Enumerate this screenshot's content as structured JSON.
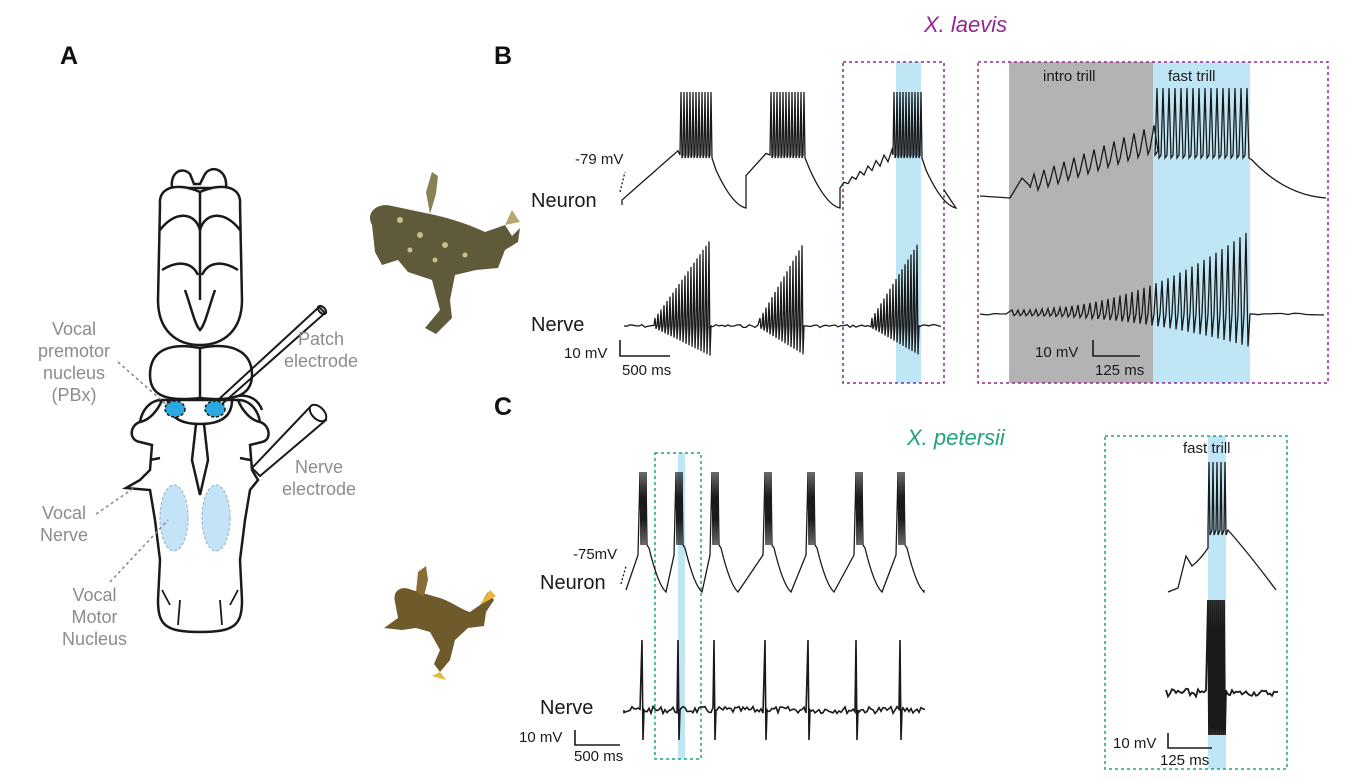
{
  "panels": {
    "a": "A",
    "b": "B",
    "c": "C"
  },
  "colors": {
    "laevis": "#93278f",
    "petersii": "#1fa37a",
    "highlight": "#bfe6f5",
    "intro": "#b3b3b3",
    "trace": "#1a1a1a",
    "label_grey": "#8c8c8c",
    "vmn": "#c3e3f7",
    "pbx": "#29a9e0"
  },
  "brain": {
    "pbx_label": [
      "Vocal",
      "premotor",
      "nucleus",
      "(PBx)"
    ],
    "patch_label": [
      "Patch",
      "electrode"
    ],
    "nerve_electrode_label": [
      "Nerve",
      "electrode"
    ],
    "vocal_nerve_label": [
      "Vocal",
      "Nerve"
    ],
    "vmn_label": [
      "Vocal",
      "Motor",
      "Nucleus"
    ]
  },
  "laevis": {
    "species": "X. laevis",
    "rmp": "-79 mV",
    "neuron_label": "Neuron",
    "nerve_label": "Nerve",
    "scale_v": "10 mV",
    "scale_t": "500 ms",
    "zoom_scale_v": "10 mV",
    "zoom_scale_t": "125 ms",
    "intro_label": "intro trill",
    "fast_label": "fast trill"
  },
  "petersii": {
    "species": "X. petersii",
    "rmp": "-75mV",
    "neuron_label": "Neuron",
    "nerve_label": "Nerve",
    "scale_v": "10 mV",
    "scale_t": "500 ms",
    "zoom_scale_v": "10 mV",
    "zoom_scale_t": "125 ms",
    "fast_label": "fast trill"
  }
}
